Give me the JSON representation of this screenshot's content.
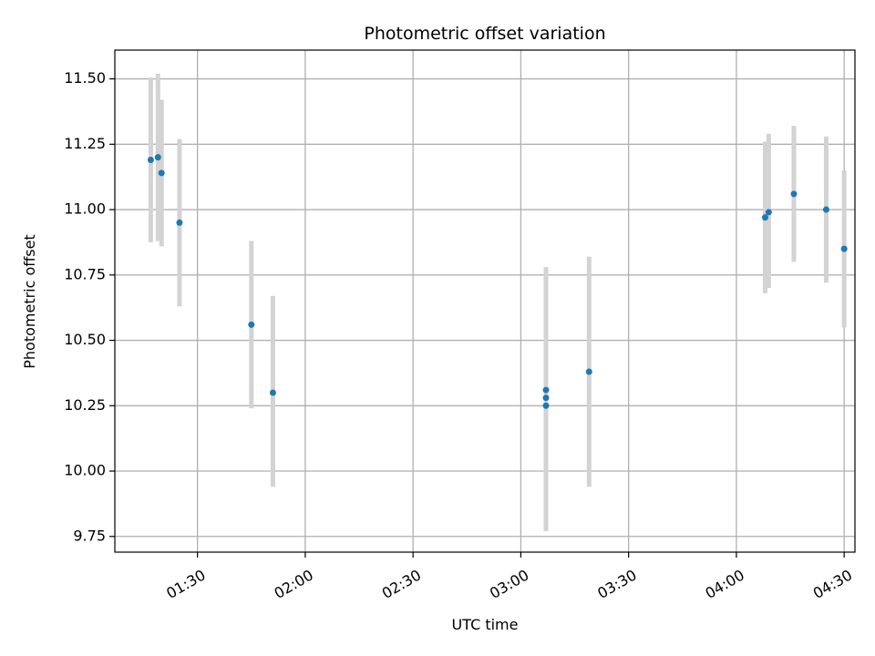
{
  "chart_data": {
    "type": "scatter",
    "title": "Photometric offset variation",
    "xlabel": "UTC time",
    "ylabel": "Photometric offset",
    "x_axis": "time",
    "xlim": [
      "01:07",
      "04:33"
    ],
    "ylim": [
      9.69,
      11.61
    ],
    "x_ticks": [
      "01:30",
      "02:00",
      "02:30",
      "03:00",
      "03:30",
      "04:00",
      "04:30"
    ],
    "y_ticks": [
      "9.75",
      "10.00",
      "10.25",
      "10.50",
      "10.75",
      "11.00",
      "11.25",
      "11.50"
    ],
    "grid": true,
    "point_color": "#1f77b4",
    "errorbar_color": "#d3d3d3",
    "points": [
      {
        "x": "01:17",
        "y": 11.19,
        "low": 10.875,
        "high": 11.505
      },
      {
        "x": "01:19",
        "y": 11.2,
        "low": 10.88,
        "high": 11.52
      },
      {
        "x": "01:20",
        "y": 11.14,
        "low": 10.86,
        "high": 11.42
      },
      {
        "x": "01:25",
        "y": 10.95,
        "low": 10.63,
        "high": 11.27
      },
      {
        "x": "01:45",
        "y": 10.56,
        "low": 10.24,
        "high": 10.88
      },
      {
        "x": "01:51",
        "y": 10.3,
        "low": 9.94,
        "high": 10.67
      },
      {
        "x": "03:07",
        "y": 10.31,
        "low": 9.85,
        "high": 10.78
      },
      {
        "x": "03:07",
        "y": 10.28,
        "low": 9.78,
        "high": 10.78
      },
      {
        "x": "03:07",
        "y": 10.25,
        "low": 9.77,
        "high": 10.73
      },
      {
        "x": "03:19",
        "y": 10.38,
        "low": 9.94,
        "high": 10.82
      },
      {
        "x": "04:08",
        "y": 10.97,
        "low": 10.68,
        "high": 11.26
      },
      {
        "x": "04:09",
        "y": 10.99,
        "low": 10.7,
        "high": 11.29
      },
      {
        "x": "04:16",
        "y": 11.06,
        "low": 10.8,
        "high": 11.32
      },
      {
        "x": "04:25",
        "y": 11.0,
        "low": 10.72,
        "high": 11.28
      },
      {
        "x": "04:30",
        "y": 10.85,
        "low": 10.55,
        "high": 11.15
      }
    ]
  }
}
